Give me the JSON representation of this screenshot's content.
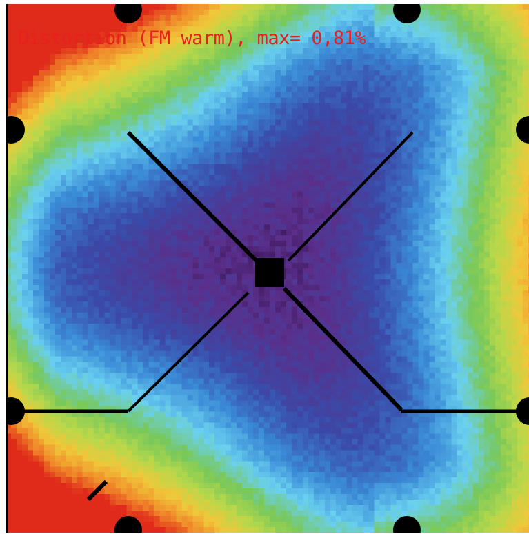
{
  "title": "Distortion (FM warm), max= 0,81%",
  "colors": {
    "title": "#e8201e",
    "structure": "#000000",
    "colormap": [
      "#2a0a3c",
      "#5a2e8a",
      "#3a4aa8",
      "#3a8ad6",
      "#6ad0f0",
      "#78c85a",
      "#b8d84a",
      "#f0c83a",
      "#f08a2a",
      "#e02a1a"
    ]
  },
  "chart_data": {
    "type": "heatmap",
    "title": "Distortion (FM warm), max= 0,81%",
    "metric": "Distortion",
    "unit": "%",
    "max_value": 0.81,
    "grid": [
      96,
      96
    ],
    "grid_lines": false,
    "axes_shown": false,
    "colorbar_shown": false,
    "color_scale": "rainbow (purple = low, red = high)",
    "pattern": "three-fold: minima in three lobes around the centre (left, right, top), rising to maximum at the left edge and the corners",
    "overlay": "black spider/vane structure: central hub, four diagonal arms, horizontal bars, mounting pads on the frame edges"
  }
}
